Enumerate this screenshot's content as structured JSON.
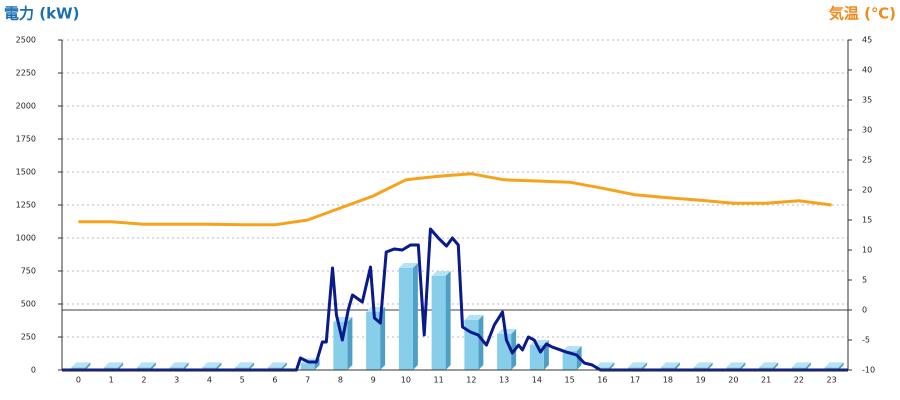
{
  "chart_data": {
    "type": "combo",
    "title": "電力 (kW)",
    "y2_title": "気温 (℃)",
    "categories": [
      "0",
      "1",
      "2",
      "3",
      "4",
      "5",
      "6",
      "7",
      "8",
      "9",
      "10",
      "11",
      "12",
      "13",
      "14",
      "15",
      "16",
      "17",
      "18",
      "19",
      "20",
      "21",
      "22",
      "23"
    ],
    "xlim": [
      -0.5,
      23.5
    ],
    "ylim": [
      0,
      2500
    ],
    "yticks": [
      0,
      250,
      500,
      750,
      1000,
      1250,
      1500,
      1750,
      2000,
      2250,
      2500
    ],
    "y2lim": [
      -10,
      45
    ],
    "y2ticks": [
      -10,
      -5,
      0,
      5,
      10,
      15,
      20,
      25,
      30,
      35,
      40,
      45
    ],
    "grid": true,
    "series": [
      {
        "type": "bar",
        "color": "#87ceeb",
        "values": [
          20,
          20,
          20,
          20,
          20,
          20,
          20,
          50,
          364,
          440,
          773,
          712,
          379,
          273,
          189,
          144,
          20,
          20,
          20,
          20,
          20,
          20,
          20,
          20
        ]
      },
      {
        "type": "line",
        "color": "#0a1a8c",
        "x": [
          -0.5,
          6.66,
          6.78,
          7.02,
          7.27,
          7.45,
          7.57,
          7.76,
          7.88,
          8.06,
          8.24,
          8.37,
          8.67,
          8.92,
          9.04,
          9.22,
          9.4,
          9.65,
          9.89,
          10.14,
          10.38,
          10.56,
          10.75,
          10.99,
          11.24,
          11.42,
          11.6,
          11.73,
          11.97,
          12.21,
          12.46,
          12.7,
          12.95,
          13.07,
          13.25,
          13.44,
          13.56,
          13.74,
          13.92,
          14.11,
          14.29,
          14.47,
          14.72,
          14.9,
          15.21,
          15.45,
          15.69,
          15.94,
          23.5
        ],
        "values": [
          0,
          0,
          91,
          61,
          61,
          212,
          212,
          773,
          417,
          227,
          455,
          568,
          515,
          780,
          394,
          356,
          894,
          917,
          909,
          947,
          947,
          265,
          1068,
          1000,
          939,
          1000,
          947,
          326,
          288,
          265,
          189,
          341,
          439,
          227,
          129,
          189,
          152,
          250,
          227,
          136,
          197,
          174,
          152,
          136,
          114,
          53,
          38,
          0,
          0
        ]
      },
      {
        "type": "line",
        "axis": "y2",
        "color": "#f7a21b",
        "values": [
          14.7,
          14.7,
          14.3,
          14.3,
          14.3,
          14.2,
          14.2,
          15,
          17,
          19,
          21.7,
          22.3,
          22.7,
          21.7,
          21.5,
          21.3,
          20.3,
          19.2,
          18.7,
          18.3,
          17.8,
          17.8,
          18.2,
          17.5
        ]
      }
    ]
  }
}
